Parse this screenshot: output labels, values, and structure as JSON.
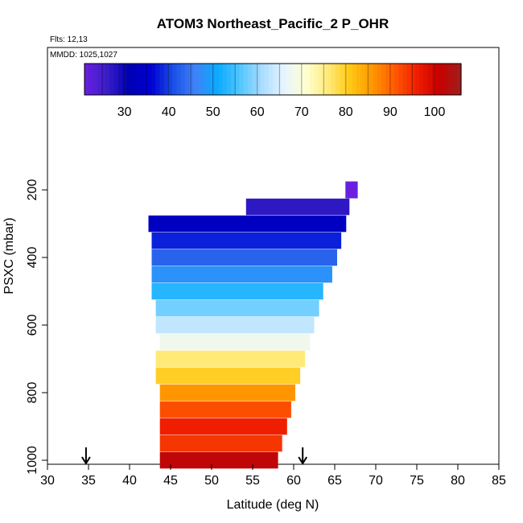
{
  "chart_data": {
    "type": "heatmap",
    "title": "ATOM3 Northeast_Pacific_2 P_OHR",
    "flights_label": "Flts: 12,13",
    "mmdd_label": "MMDD: 1025,1027",
    "xlabel": "Latitude (deg N)",
    "ylabel": "PSXC (mbar)",
    "xlim": [
      30,
      85
    ],
    "ylim": [
      1000,
      0
    ],
    "x_ticks": [
      "30",
      "35",
      "40",
      "45",
      "50",
      "55",
      "60",
      "65",
      "70",
      "75",
      "80",
      "85"
    ],
    "y_ticks": [
      "200",
      "400",
      "600",
      "800",
      "1000"
    ],
    "colorbar": {
      "range": [
        21,
        106
      ],
      "ticks": [
        "30",
        "40",
        "50",
        "60",
        "70",
        "80",
        "90",
        "100"
      ],
      "colors": [
        "#6a1fe0",
        "#3a1ec8",
        "#0000b4",
        "#0000d2",
        "#1a4fe6",
        "#3f82f5",
        "#0aaaff",
        "#50c6ff",
        "#a8dcff",
        "#e6f4ff",
        "#ffffd2",
        "#ffea78",
        "#ffc814",
        "#ff9600",
        "#ff5a00",
        "#f01e00",
        "#c80000",
        "#a01e1e"
      ]
    },
    "cells": [
      {
        "p": 200,
        "lat_min": 66.3,
        "lat_max": 67.8,
        "value": 21
      },
      {
        "p": 250,
        "lat_min": 54.2,
        "lat_max": 66.8,
        "value": 27
      },
      {
        "p": 300,
        "lat_min": 42.3,
        "lat_max": 66.4,
        "value": 33
      },
      {
        "p": 350,
        "lat_min": 42.7,
        "lat_max": 65.8,
        "value": 38
      },
      {
        "p": 400,
        "lat_min": 42.7,
        "lat_max": 65.3,
        "value": 43
      },
      {
        "p": 450,
        "lat_min": 42.7,
        "lat_max": 64.7,
        "value": 48
      },
      {
        "p": 500,
        "lat_min": 42.7,
        "lat_max": 63.6,
        "value": 53
      },
      {
        "p": 550,
        "lat_min": 43.2,
        "lat_max": 63.1,
        "value": 58
      },
      {
        "p": 600,
        "lat_min": 43.2,
        "lat_max": 62.5,
        "value": 63
      },
      {
        "p": 650,
        "lat_min": 43.7,
        "lat_max": 62.0,
        "value": 68
      },
      {
        "p": 700,
        "lat_min": 43.2,
        "lat_max": 61.4,
        "value": 76
      },
      {
        "p": 750,
        "lat_min": 43.2,
        "lat_max": 60.8,
        "value": 80
      },
      {
        "p": 800,
        "lat_min": 43.7,
        "lat_max": 60.2,
        "value": 86
      },
      {
        "p": 850,
        "lat_min": 43.7,
        "lat_max": 59.7,
        "value": 92
      },
      {
        "p": 900,
        "lat_min": 43.7,
        "lat_max": 59.2,
        "value": 96
      },
      {
        "p": 950,
        "lat_min": 43.7,
        "lat_max": 58.6,
        "value": 94
      },
      {
        "p": 1000,
        "lat_min": 43.7,
        "lat_max": 58.1,
        "value": 102
      }
    ],
    "arrows_lat": [
      34.7,
      61.1
    ]
  }
}
